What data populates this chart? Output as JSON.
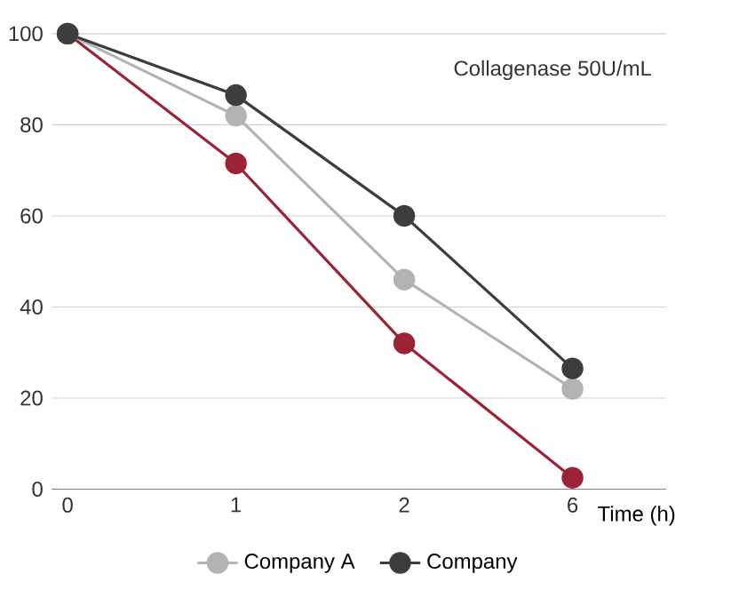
{
  "chart_data": {
    "type": "line",
    "categories": [
      "0",
      "1",
      "2",
      "6"
    ],
    "xlabel": "Time (h)",
    "annotations": [
      "Collagenase 50U/mL"
    ],
    "series": [
      {
        "color": "#9b2335",
        "values": [
          100,
          71.5,
          32,
          2.5
        ]
      },
      {
        "name": "Company A",
        "color": "#b3b3b3",
        "values": [
          100,
          82,
          46,
          22
        ]
      },
      {
        "name": "Company",
        "color": "#3d3d3d",
        "values": [
          100,
          86.5,
          60,
          26.5
        ]
      }
    ],
    "ylim": [
      0,
      100
    ],
    "yticks": [
      0,
      20,
      40,
      60,
      80,
      100
    ],
    "grid": "y",
    "legend": "bottom",
    "marker": "circle",
    "line_style": "solid"
  }
}
